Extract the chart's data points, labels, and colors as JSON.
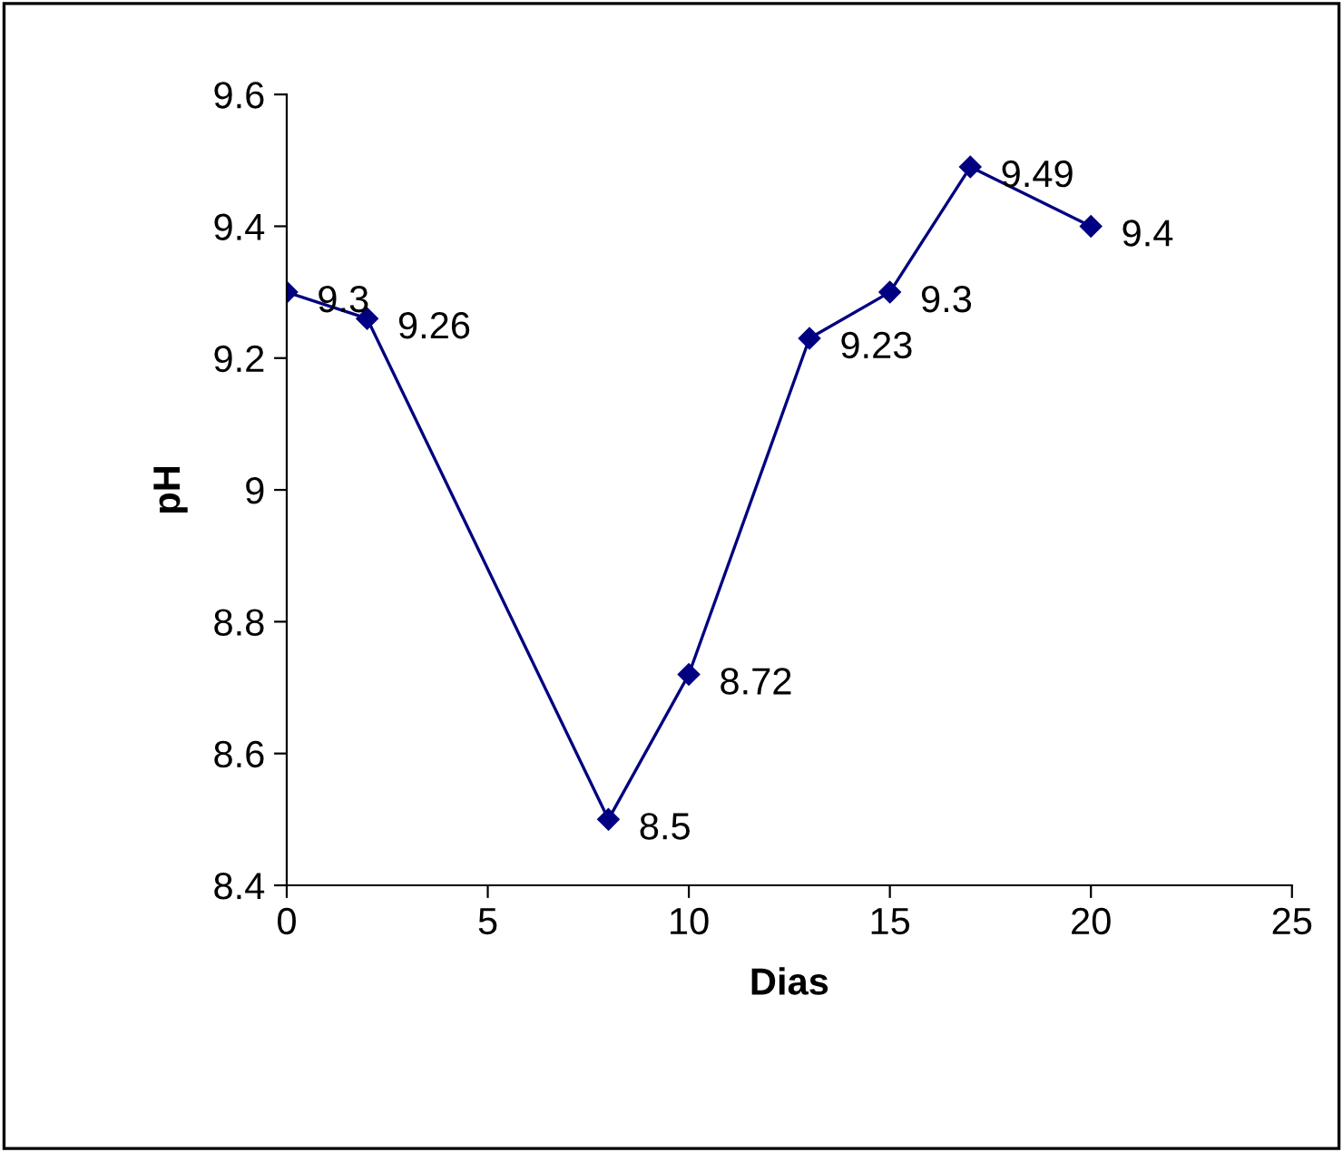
{
  "chart_data": {
    "type": "line",
    "xlabel": "Dias",
    "ylabel": "pH",
    "x": [
      0,
      2,
      8,
      10,
      13,
      15,
      17,
      20
    ],
    "series": [
      {
        "color": "#000080",
        "values": [
          9.3,
          9.26,
          8.5,
          8.72,
          9.23,
          9.3,
          9.49,
          9.4
        ]
      }
    ],
    "data_labels": true,
    "marker": "diamond",
    "line_style": "solid",
    "grid": false,
    "xlim": [
      0,
      25
    ],
    "xticks": [
      0,
      5,
      10,
      15,
      20,
      25
    ],
    "ylim": [
      8.4,
      9.6
    ],
    "yticks": [
      8.4,
      8.6,
      8.8,
      9,
      9.2,
      9.4,
      9.6
    ]
  }
}
